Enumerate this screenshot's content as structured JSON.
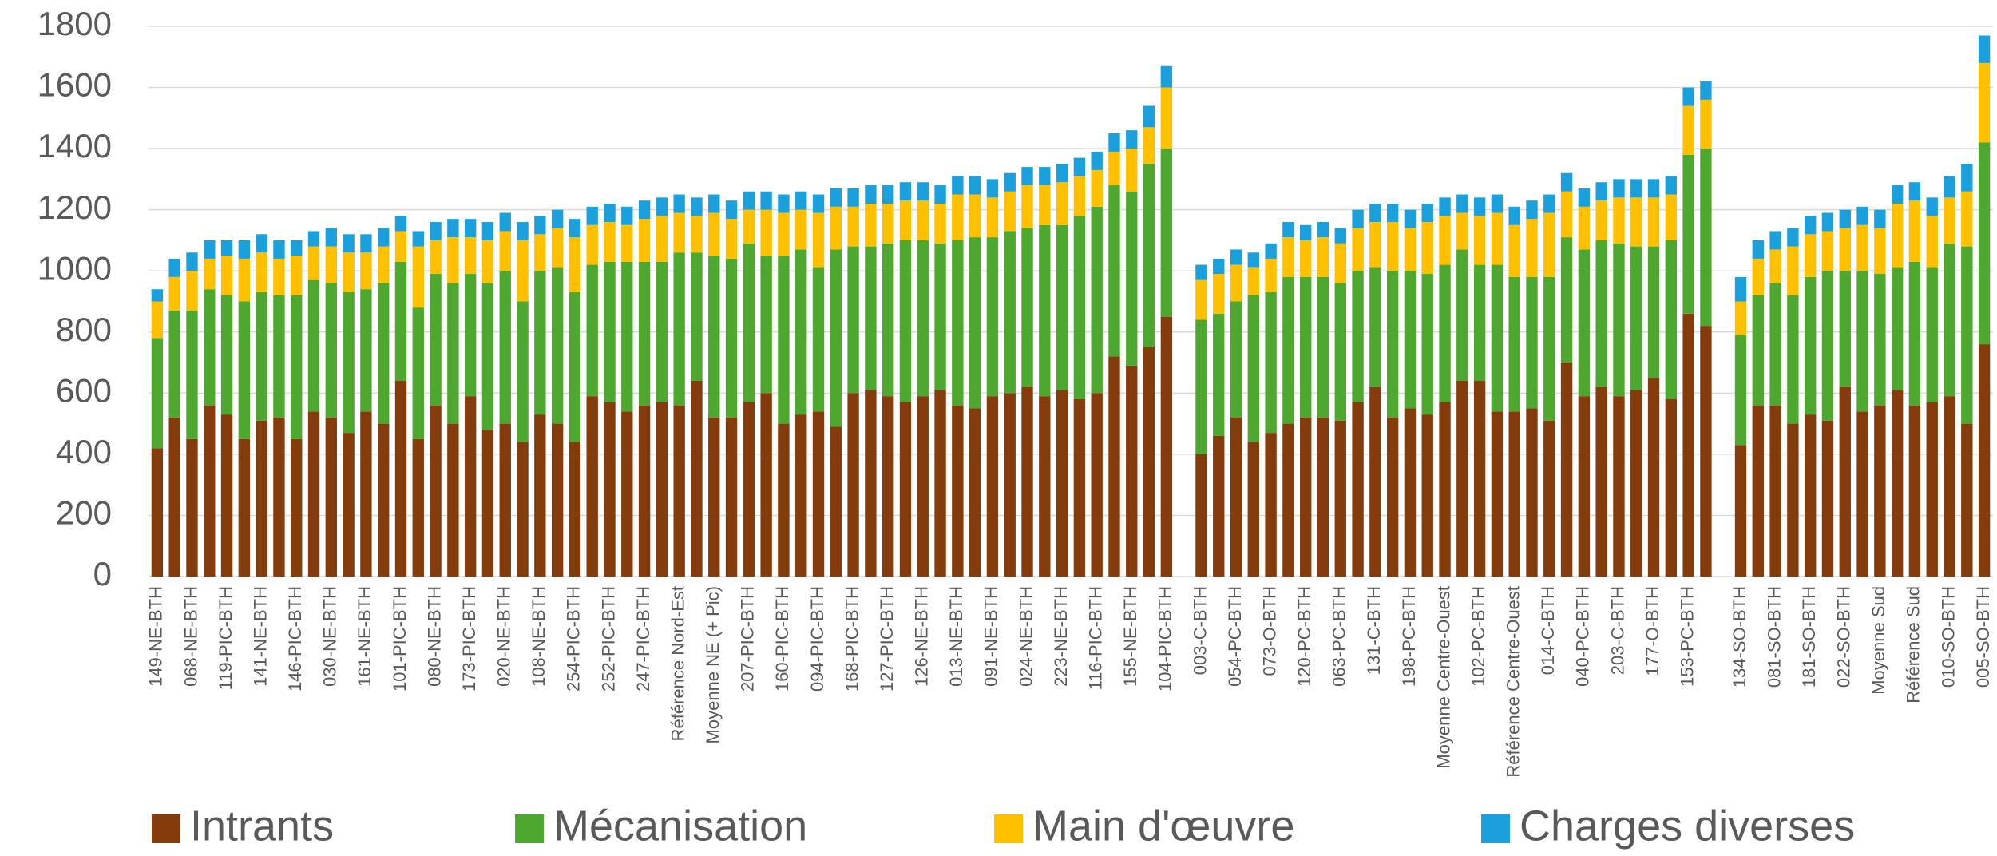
{
  "chart_data": {
    "type": "stacked_bar",
    "ylim": [
      0,
      1800
    ],
    "yticks": [
      0,
      200,
      400,
      600,
      800,
      1000,
      1200,
      1400,
      1600,
      1800
    ],
    "grid": true,
    "legend": "bottom",
    "categories": [
      "149-NE-BTH",
      null,
      "068-NE-BTH",
      null,
      "119-PIC-BTH",
      null,
      "141-NE-BTH",
      null,
      "146-PIC-BTH",
      null,
      "030-NE-BTH",
      null,
      "161-NE-BTH",
      null,
      "101-PIC-BTH",
      null,
      "080-NE-BTH",
      null,
      "173-PIC-BTH",
      null,
      "020-NE-BTH",
      null,
      "108-NE-BTH",
      null,
      "254-PIC-BTH",
      null,
      "252-PIC-BTH",
      null,
      "247-PIC-BTH",
      null,
      "Référence Nord-Est",
      null,
      "Moyenne NE (+ Pic)",
      null,
      "207-PIC-BTH",
      null,
      "160-PIC-BTH",
      null,
      "094-PIC-BTH",
      null,
      "168-PIC-BTH",
      null,
      "127-PIC-BTH",
      null,
      "126-NE-BTH",
      null,
      "013-NE-BTH",
      null,
      "091-NE-BTH",
      null,
      "024-NE-BTH",
      null,
      "223-NE-BTH",
      null,
      "116-PIC-BTH",
      null,
      "155-NE-BTH",
      null,
      "104-PIC-BTH",
      null,
      "003-C-BTH",
      null,
      "054-PC-BTH",
      null,
      "073-O-BTH",
      null,
      "120-PC-BTH",
      null,
      "063-PC-BTH",
      null,
      "131-C-BTH",
      null,
      "198-PC-BTH",
      null,
      "Moyenne Centre-Ouest",
      null,
      "102-PC-BTH",
      null,
      "Référence Centre-Ouest",
      null,
      "014-C-BTH",
      null,
      "040-PC-BTH",
      null,
      "203-C-BTH",
      null,
      "177-O-BTH",
      null,
      "153-PC-BTH",
      null,
      null,
      "134-SO-BTH",
      null,
      "081-SO-BTH",
      null,
      "181-SO-BTH",
      null,
      "022-SO-BTH",
      null,
      "Moyenne Sud",
      null,
      "Référence Sud",
      null,
      "010-SO-BTH",
      null,
      "005-SO-BTH"
    ],
    "series": [
      {
        "name": "Intrants",
        "color": "#843c0c",
        "values": [
          420,
          520,
          450,
          560,
          530,
          450,
          510,
          520,
          450,
          540,
          520,
          470,
          540,
          500,
          640,
          450,
          560,
          500,
          590,
          480,
          500,
          440,
          530,
          500,
          440,
          590,
          570,
          540,
          560,
          570,
          560,
          640,
          520,
          520,
          570,
          600,
          500,
          530,
          540,
          490,
          600,
          610,
          590,
          570,
          590,
          610,
          560,
          550,
          590,
          600,
          620,
          590,
          610,
          580,
          600,
          720,
          690,
          750,
          850,
          null,
          400,
          460,
          520,
          440,
          470,
          500,
          520,
          520,
          510,
          570,
          620,
          520,
          550,
          530,
          570,
          640,
          640,
          540,
          540,
          550,
          510,
          700,
          590,
          620,
          590,
          610,
          650,
          580,
          860,
          820,
          null,
          430,
          560,
          560,
          500,
          530,
          510,
          620,
          540,
          560,
          610,
          560,
          570,
          590,
          500,
          760
        ]
      },
      {
        "name": "Mécanisation",
        "color": "#4ea72e",
        "values": [
          360,
          350,
          420,
          380,
          390,
          450,
          420,
          400,
          470,
          430,
          440,
          460,
          400,
          460,
          390,
          430,
          430,
          460,
          400,
          480,
          500,
          460,
          470,
          510,
          490,
          430,
          460,
          490,
          470,
          460,
          500,
          420,
          530,
          520,
          520,
          450,
          550,
          540,
          470,
          580,
          480,
          470,
          500,
          530,
          510,
          480,
          540,
          560,
          520,
          530,
          520,
          560,
          540,
          600,
          610,
          560,
          570,
          600,
          550,
          null,
          440,
          400,
          380,
          480,
          460,
          480,
          460,
          460,
          450,
          430,
          390,
          480,
          450,
          460,
          450,
          430,
          380,
          480,
          440,
          430,
          470,
          410,
          480,
          480,
          500,
          470,
          430,
          520,
          520,
          580,
          null,
          360,
          360,
          400,
          420,
          450,
          490,
          380,
          460,
          430,
          400,
          470,
          440,
          500,
          580,
          660
        ]
      },
      {
        "name": "Main d'œuvre",
        "color": "#ffc000",
        "values": [
          120,
          110,
          130,
          100,
          130,
          140,
          130,
          120,
          130,
          110,
          120,
          130,
          120,
          120,
          100,
          200,
          110,
          150,
          120,
          140,
          130,
          200,
          120,
          130,
          180,
          130,
          130,
          120,
          140,
          150,
          130,
          120,
          140,
          130,
          110,
          150,
          140,
          130,
          180,
          140,
          130,
          140,
          130,
          130,
          130,
          130,
          150,
          140,
          130,
          130,
          140,
          130,
          140,
          130,
          120,
          110,
          140,
          120,
          200,
          null,
          130,
          130,
          120,
          90,
          110,
          130,
          120,
          130,
          130,
          140,
          150,
          160,
          140,
          170,
          160,
          120,
          160,
          170,
          170,
          190,
          210,
          150,
          140,
          130,
          150,
          160,
          160,
          150,
          160,
          160,
          null,
          110,
          120,
          110,
          160,
          140,
          130,
          140,
          150,
          150,
          210,
          200,
          170,
          150,
          180,
          260
        ]
      },
      {
        "name": "Charges diverses",
        "color": "#1ca0dc",
        "values": [
          40,
          60,
          60,
          60,
          50,
          60,
          60,
          60,
          50,
          50,
          60,
          60,
          60,
          60,
          50,
          50,
          60,
          60,
          60,
          60,
          60,
          60,
          60,
          60,
          60,
          60,
          60,
          60,
          60,
          60,
          60,
          60,
          60,
          60,
          60,
          60,
          60,
          60,
          60,
          60,
          60,
          60,
          60,
          60,
          60,
          60,
          60,
          60,
          60,
          60,
          60,
          60,
          60,
          60,
          60,
          60,
          60,
          70,
          70,
          null,
          50,
          50,
          50,
          50,
          50,
          50,
          50,
          50,
          50,
          60,
          60,
          60,
          60,
          60,
          60,
          60,
          60,
          60,
          60,
          60,
          60,
          60,
          60,
          60,
          60,
          60,
          60,
          60,
          60,
          60,
          null,
          80,
          60,
          60,
          60,
          60,
          60,
          60,
          60,
          60,
          60,
          60,
          60,
          70,
          90,
          90
        ]
      }
    ]
  }
}
